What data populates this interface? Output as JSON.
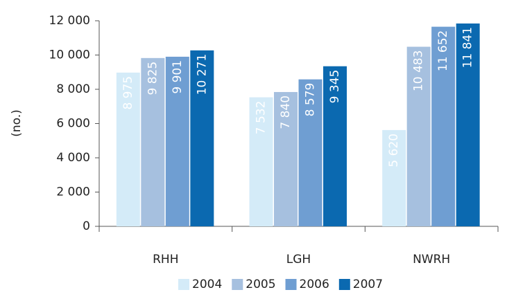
{
  "chart_data": {
    "type": "bar",
    "y_label": "(no.)",
    "categories": [
      "RHH",
      "LGH",
      "NWRH"
    ],
    "series": [
      {
        "name": "2004",
        "color": "#d4ebf8",
        "values": [
          8975,
          7532,
          5620
        ],
        "value_labels": [
          "8 975",
          "7 532",
          "5 620"
        ]
      },
      {
        "name": "2005",
        "color": "#a6c0df",
        "values": [
          9825,
          7840,
          10483
        ],
        "value_labels": [
          "9 825",
          "7 840",
          "10 483"
        ]
      },
      {
        "name": "2006",
        "color": "#6f9ed2",
        "values": [
          9901,
          8579,
          11652
        ],
        "value_labels": [
          "9 901",
          "8 579",
          "11 652"
        ]
      },
      {
        "name": "2007",
        "color": "#0b69b0",
        "values": [
          10271,
          9345,
          11841
        ],
        "value_labels": [
          "10 271",
          "9 345",
          "11 841"
        ]
      }
    ],
    "ylim": [
      0,
      12000
    ],
    "yticks": [
      0,
      {
        "value": 2000,
        "label": "2 000"
      },
      {
        "value": 4000,
        "label": "4 000"
      },
      {
        "value": 6000,
        "label": "6 000"
      },
      {
        "value": 8000,
        "label": "8 000"
      },
      {
        "value": 10000,
        "label": "10 000"
      },
      {
        "value": 12000,
        "label": "12 000"
      }
    ],
    "legend": "bottom"
  }
}
